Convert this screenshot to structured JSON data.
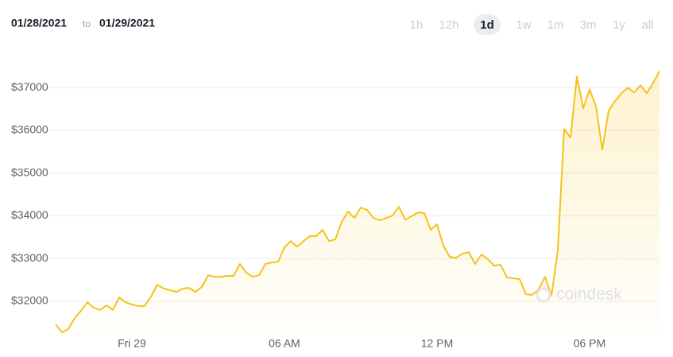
{
  "header": {
    "start_date": "01/28/2021",
    "separator": "to",
    "end_date": "01/29/2021",
    "ranges": [
      "1h",
      "12h",
      "1d",
      "1w",
      "1m",
      "3m",
      "1y",
      "all"
    ],
    "selected_range": "1d"
  },
  "watermark": "coindesk",
  "chart_data": {
    "type": "area",
    "color": "#f5c21b",
    "grid": true,
    "x": [
      -3,
      -2.75,
      -2.5,
      -2.25,
      -2,
      -1.75,
      -1.5,
      -1.25,
      -1,
      -0.75,
      -0.5,
      -0.25,
      0,
      0.25,
      0.5,
      0.75,
      1,
      1.25,
      1.5,
      1.75,
      2,
      2.25,
      2.5,
      2.75,
      3,
      3.25,
      3.5,
      3.75,
      4,
      4.25,
      4.5,
      4.75,
      5,
      5.25,
      5.5,
      5.75,
      6,
      6.25,
      6.5,
      6.75,
      7,
      7.25,
      7.5,
      7.75,
      8,
      8.25,
      8.5,
      8.75,
      9,
      9.25,
      9.5,
      9.75,
      10,
      10.25,
      10.5,
      10.75,
      11,
      11.25,
      11.5,
      11.75,
      12,
      12.25,
      12.5,
      12.75,
      13,
      13.25,
      13.5,
      13.75,
      14,
      14.25,
      14.5,
      14.75,
      15,
      15.25,
      15.5,
      15.75,
      16,
      16.25,
      16.5,
      16.75,
      17,
      17.25,
      17.5,
      17.75,
      18,
      18.25,
      18.5,
      18.75,
      19,
      19.25,
      19.5,
      19.75,
      20,
      20.25,
      20.5,
      20.75
    ],
    "values": [
      31460,
      31275,
      31350,
      31610,
      31780,
      31980,
      31850,
      31800,
      31905,
      31800,
      32090,
      31980,
      31925,
      31890,
      31890,
      32110,
      32390,
      32300,
      32260,
      32220,
      32300,
      32315,
      32220,
      32335,
      32610,
      32575,
      32575,
      32595,
      32595,
      32875,
      32670,
      32575,
      32610,
      32875,
      32910,
      32930,
      33265,
      33410,
      33280,
      33410,
      33525,
      33525,
      33675,
      33410,
      33450,
      33860,
      34100,
      33950,
      34195,
      34140,
      33950,
      33895,
      33950,
      34005,
      34210,
      33915,
      33990,
      34080,
      34065,
      33675,
      33805,
      33300,
      33040,
      33020,
      33115,
      33150,
      32875,
      33095,
      32985,
      32835,
      32855,
      32560,
      32540,
      32520,
      32165,
      32150,
      32280,
      32575,
      32130,
      33190,
      36035,
      35830,
      37260,
      36515,
      36960,
      36570,
      35550,
      36460,
      36685,
      36870,
      37000,
      36890,
      37055,
      36870,
      37110,
      37390
    ],
    "xlim": [
      -3,
      20.75
    ],
    "xticks": [
      {
        "value": 0,
        "label": "Fri 29"
      },
      {
        "value": 6,
        "label": "06 AM"
      },
      {
        "value": 12,
        "label": "12 PM"
      },
      {
        "value": 18,
        "label": "06 PM"
      }
    ],
    "ylim": [
      31200,
      37600
    ],
    "yticks": [
      {
        "value": 32000,
        "label": "$32000"
      },
      {
        "value": 33000,
        "label": "$33000"
      },
      {
        "value": 34000,
        "label": "$34000"
      },
      {
        "value": 35000,
        "label": "$35000"
      },
      {
        "value": 36000,
        "label": "$36000"
      },
      {
        "value": 37000,
        "label": "$37000"
      }
    ]
  }
}
